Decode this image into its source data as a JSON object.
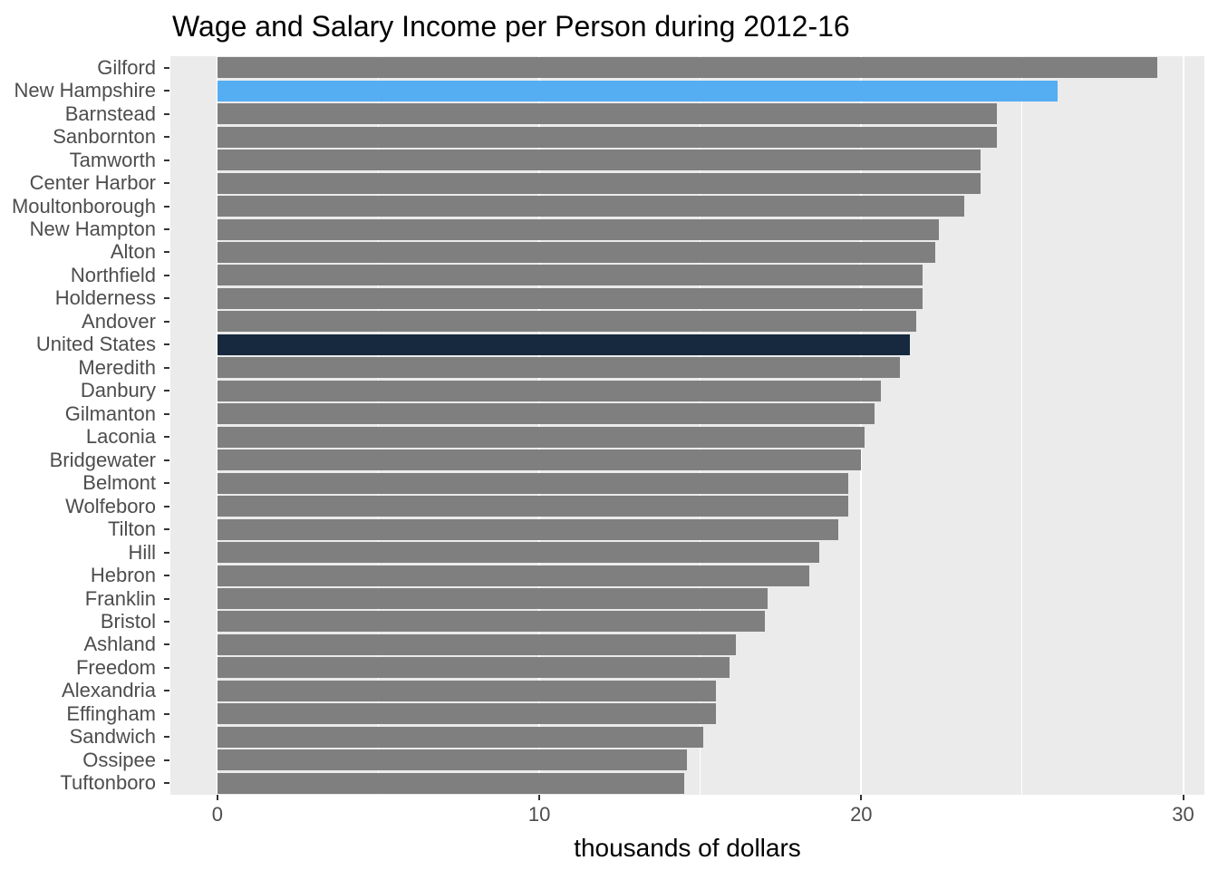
{
  "title": "Wage and Salary Income per Person during 2012-16",
  "chart_data": {
    "type": "bar",
    "orientation": "horizontal",
    "title": "Wage and Salary Income per Person during 2012-16",
    "xlabel": "thousands of dollars",
    "ylabel": "",
    "units": "thousands of dollars",
    "xlim": [
      -1.46,
      30.66
    ],
    "x_ticks": [
      0,
      10,
      20,
      30
    ],
    "x_minor_gridlines": [
      5,
      15,
      25
    ],
    "grid": "white vertical gridlines on gray panel",
    "legend": "none",
    "categories": [
      "Gilford",
      "New Hampshire",
      "Barnstead",
      "Sanbornton",
      "Tamworth",
      "Center Harbor",
      "Moultonborough",
      "New Hampton",
      "Alton",
      "Northfield",
      "Holderness",
      "Andover",
      "United States",
      "Meredith",
      "Danbury",
      "Gilmanton",
      "Laconia",
      "Bridgewater",
      "Belmont",
      "Wolfeboro",
      "Tilton",
      "Hill",
      "Hebron",
      "Franklin",
      "Bristol",
      "Ashland",
      "Freedom",
      "Alexandria",
      "Effingham",
      "Sandwich",
      "Ossipee",
      "Tuftonboro"
    ],
    "values": [
      29.2,
      26.1,
      24.2,
      24.2,
      23.7,
      23.7,
      23.2,
      22.4,
      22.3,
      21.9,
      21.9,
      21.7,
      21.5,
      21.2,
      20.6,
      20.4,
      20.1,
      20.0,
      19.6,
      19.6,
      19.3,
      18.7,
      18.4,
      17.1,
      17.0,
      16.1,
      15.9,
      15.5,
      15.5,
      15.1,
      14.6,
      14.5
    ],
    "highlights": [
      {
        "category": "New Hampshire",
        "color": "#55AEF2"
      },
      {
        "category": "United States",
        "color": "#16293E"
      }
    ],
    "colors": {
      "bar_default": "#7F7F7F",
      "panel_background": "#EBEBEB",
      "gridline": "#FFFFFF",
      "axis_text": "#4D4D4D",
      "tick_mark": "#333333",
      "title_text": "#000000"
    }
  }
}
